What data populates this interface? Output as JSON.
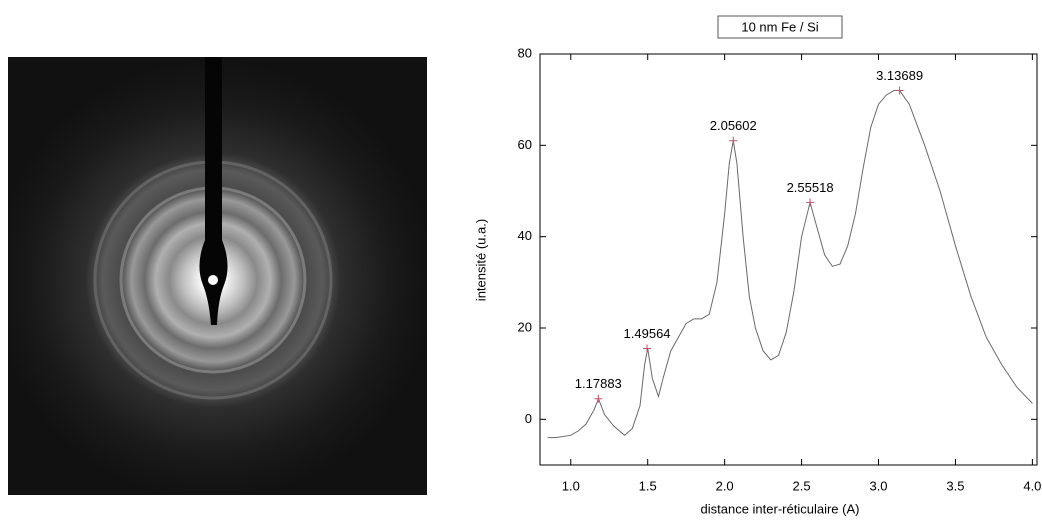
{
  "chart_data": {
    "type": "line",
    "title": "10 nm Fe / Si",
    "x_label": "distance inter-réticulaire (A)",
    "y_label": "intensité (u.a.)",
    "x": [
      0.85,
      0.9,
      1.0,
      1.05,
      1.1,
      1.15,
      1.18,
      1.22,
      1.28,
      1.35,
      1.4,
      1.45,
      1.48,
      1.5,
      1.53,
      1.57,
      1.6,
      1.65,
      1.7,
      1.75,
      1.8,
      1.85,
      1.9,
      1.95,
      2.0,
      2.03,
      2.056,
      2.08,
      2.12,
      2.16,
      2.2,
      2.25,
      2.3,
      2.35,
      2.4,
      2.45,
      2.5,
      2.555,
      2.6,
      2.65,
      2.7,
      2.75,
      2.8,
      2.85,
      2.9,
      2.95,
      3.0,
      3.05,
      3.1,
      3.137,
      3.2,
      3.3,
      3.4,
      3.5,
      3.6,
      3.7,
      3.8,
      3.9,
      4.0
    ],
    "series": [
      {
        "color": "#6a6a6a",
        "values": [
          -4,
          -4,
          -3.5,
          -2.5,
          -1,
          2,
          4.5,
          1,
          -1.5,
          -3.5,
          -2,
          3,
          12,
          15.5,
          9,
          5,
          9,
          15,
          18,
          21,
          22,
          22,
          23,
          30,
          45,
          56,
          61,
          56,
          40,
          27,
          20,
          15,
          13,
          14,
          19,
          28,
          40,
          47.5,
          42,
          36,
          33.5,
          34,
          38,
          45,
          55,
          64,
          69,
          71,
          72,
          72,
          69,
          60,
          50,
          38,
          27,
          18,
          12,
          7,
          3.5
        ]
      }
    ],
    "peaks": {
      "x": [
        1.17883,
        1.49564,
        2.05602,
        2.55518,
        3.13689
      ],
      "y": [
        4.5,
        15.5,
        61,
        47.5,
        72
      ],
      "color": "#c0506a"
    },
    "xlim": [
      0.8,
      4.03
    ],
    "ylim": [
      -10,
      80
    ],
    "xticks": [
      {
        "value": 1,
        "label": "1.0"
      },
      {
        "value": 1.5,
        "label": "1.5"
      },
      {
        "value": 2,
        "label": "2.0"
      },
      {
        "value": 2.5,
        "label": "2.5"
      },
      {
        "value": 3,
        "label": "3.0"
      },
      {
        "value": 3.5,
        "label": "3.5"
      },
      {
        "value": 4,
        "label": "4.0"
      }
    ],
    "yticks": [
      0,
      20,
      40,
      60,
      80
    ]
  }
}
